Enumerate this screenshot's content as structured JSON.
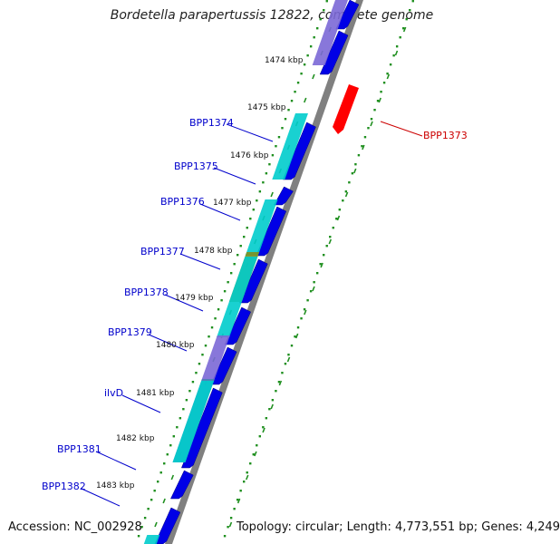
{
  "title": "Bordetella parapertussis 12822, complete genome",
  "accession": "Accession: NC_002928",
  "topology": "Topology: circular; Length: 4,773,551 bp; Genes: 4,249",
  "colors": {
    "forward_cds": "#0000e6",
    "reverse_cds": "#ff0000",
    "cog_cyan": "#00cccc",
    "cog_purple": "#7b68d6",
    "cog_olive": "#7f8f1f",
    "cog_steel": "#4682b4",
    "backbone": "#808080",
    "gc_skew": "#1f8f1f",
    "forward_label": "#0000cc",
    "reverse_label": "#cc0000"
  },
  "kbp_labels": [
    "1474 kbp",
    "1475 kbp",
    "1476 kbp",
    "1477 kbp",
    "1478 kbp",
    "1479 kbp",
    "1480 kbp",
    "1481 kbp",
    "1482 kbp",
    "1483 kbp"
  ],
  "genes_forward": [
    "BPP1374",
    "BPP1375",
    "BPP1376",
    "BPP1377",
    "BPP1378",
    "BPP1379",
    "ilvD",
    "BPP1381",
    "BPP1382"
  ],
  "genes_reverse": [
    "BPP1373"
  ]
}
